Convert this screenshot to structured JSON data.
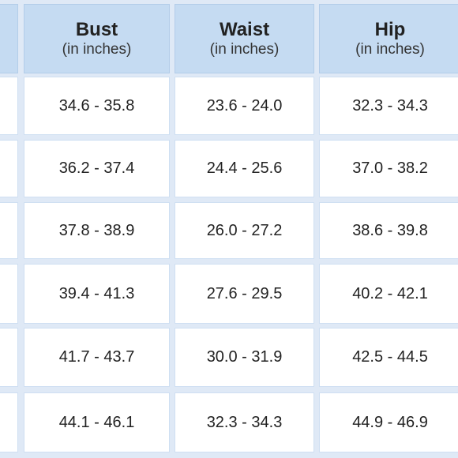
{
  "table": {
    "columns": [
      {
        "title": "Bust",
        "subtitle": "(in inches)"
      },
      {
        "title": "Waist",
        "subtitle": "(in inches)"
      },
      {
        "title": "Hip",
        "subtitle": "(in inches)"
      }
    ],
    "rows": [
      [
        "34.6 - 35.8",
        "23.6 - 24.0",
        "32.3 - 34.3"
      ],
      [
        "36.2 - 37.4",
        "24.4 - 25.6",
        "37.0 - 38.2"
      ],
      [
        "37.8 - 38.9",
        "26.0 - 27.2",
        "38.6 - 39.8"
      ],
      [
        "39.4 - 41.3",
        "27.6 - 29.5",
        "40.2 - 42.1"
      ],
      [
        "41.7 - 43.7",
        "30.0 - 31.9",
        "42.5 - 44.5"
      ],
      [
        "44.1 - 46.1",
        "32.3 - 34.3",
        "44.9 - 46.9"
      ]
    ]
  }
}
